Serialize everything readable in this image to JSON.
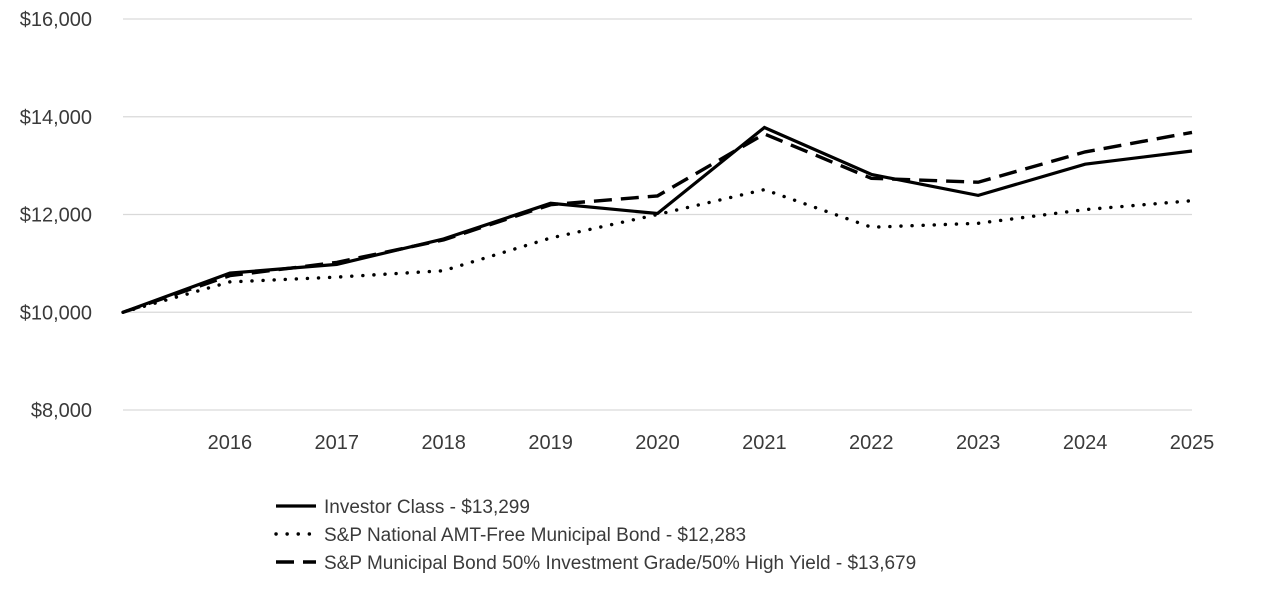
{
  "chart_data": {
    "type": "line",
    "title": "",
    "xlabel": "",
    "ylabel": "",
    "x": [
      2015,
      2016,
      2017,
      2018,
      2019,
      2020,
      2021,
      2022,
      2023,
      2024,
      2025
    ],
    "x_tick_labels": [
      "2016",
      "2017",
      "2018",
      "2019",
      "2020",
      "2021",
      "2022",
      "2023",
      "2024",
      "2025"
    ],
    "ylim": [
      8000,
      16000
    ],
    "y_ticks": [
      8000,
      10000,
      12000,
      14000,
      16000
    ],
    "y_tick_labels": [
      "$8,000",
      "$10,000",
      "$12,000",
      "$14,000",
      "$16,000"
    ],
    "grid": true,
    "legend_position": "bottom",
    "series": [
      {
        "name": "Investor Class - $13,299",
        "style": "solid",
        "values": [
          10000,
          10800,
          10980,
          11500,
          12230,
          12020,
          13780,
          12820,
          12390,
          13030,
          13299
        ]
      },
      {
        "name": "S&P National AMT-Free Municipal Bond - $12,283",
        "style": "dotted",
        "values": [
          10000,
          10620,
          10720,
          10850,
          11520,
          12000,
          12510,
          11740,
          11820,
          12100,
          12283
        ]
      },
      {
        "name": "S&P Municipal Bond 50% Investment Grade/50% High Yield - $13,679",
        "style": "dashed",
        "values": [
          10000,
          10750,
          11020,
          11480,
          12200,
          12380,
          13650,
          12740,
          12660,
          13280,
          13679
        ]
      }
    ]
  }
}
